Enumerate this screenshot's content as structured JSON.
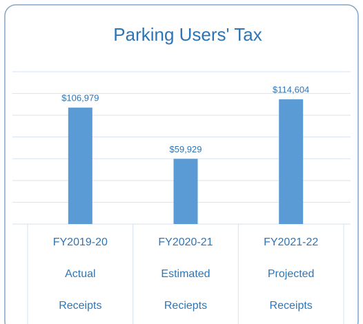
{
  "chart_data": {
    "type": "bar",
    "title": "Parking Users' Tax",
    "categories": [
      [
        "FY2019-20",
        "Actual",
        "Receipts"
      ],
      [
        "FY2020-21",
        "Estimated",
        "Reciepts"
      ],
      [
        "FY2021-22",
        "Projected",
        "Receipts"
      ]
    ],
    "values": [
      106979,
      59929,
      114604
    ],
    "value_labels": [
      "$106,979",
      "$59,929",
      "$114,604"
    ],
    "color": "#5b9bd5",
    "ylim": [
      0,
      140000
    ],
    "yticks": [
      0,
      20000,
      40000,
      60000,
      80000,
      100000,
      120000,
      140000
    ],
    "grid": true
  }
}
